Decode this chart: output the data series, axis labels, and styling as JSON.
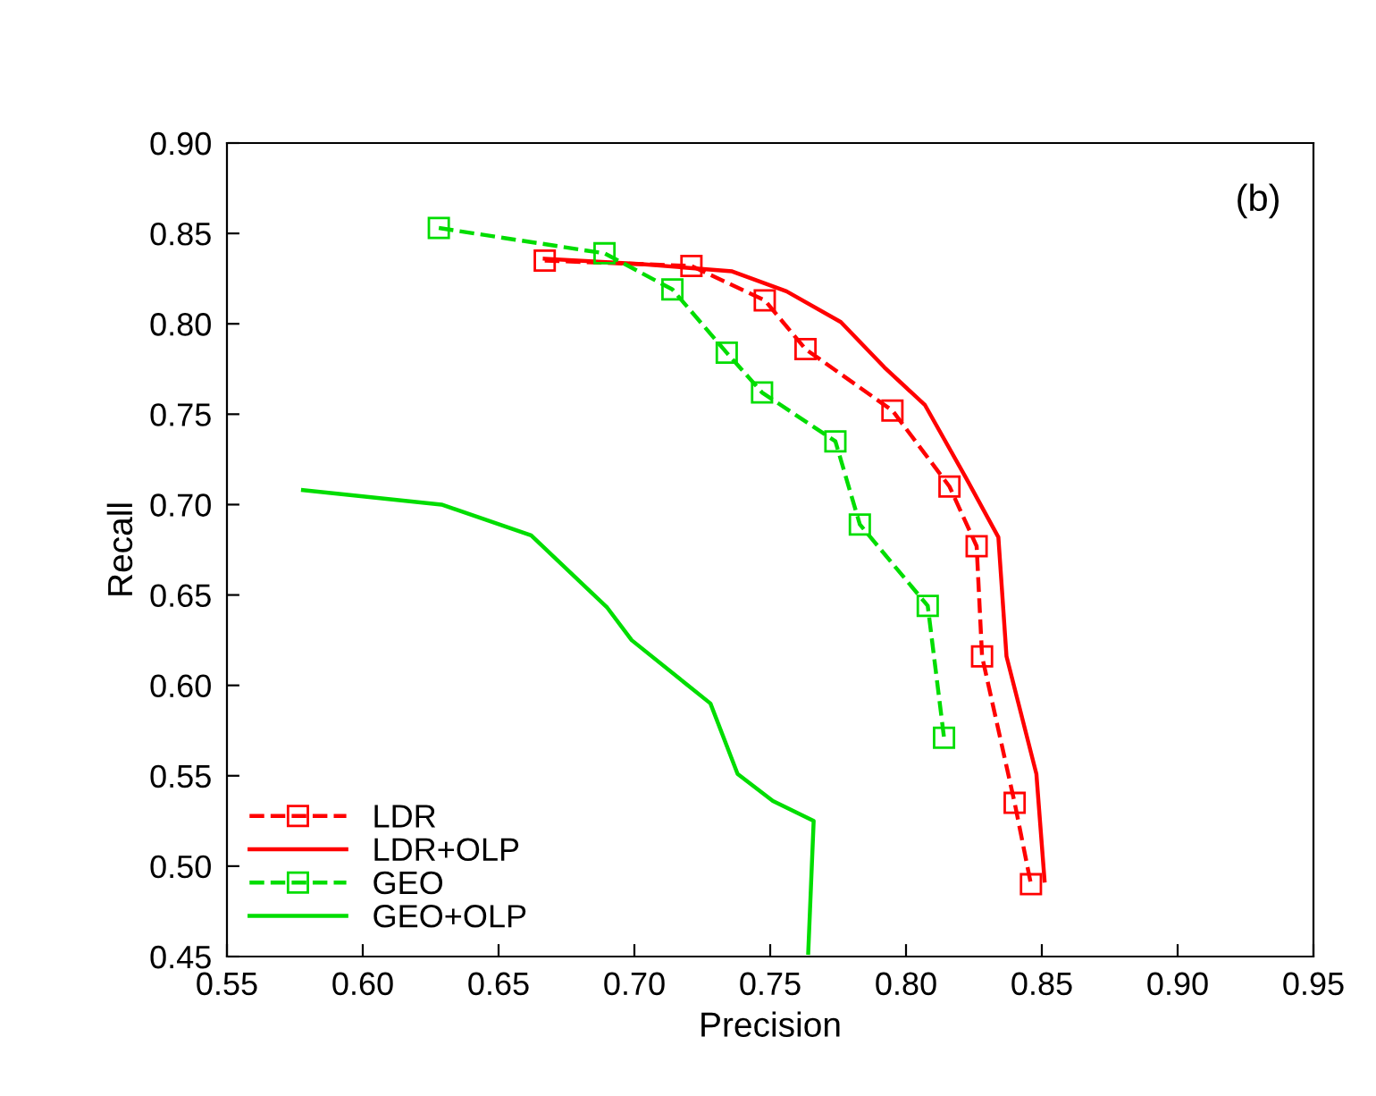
{
  "chart_data": {
    "type": "line",
    "xlabel": "Precision",
    "ylabel": "Recall",
    "annotations": [
      "(b)"
    ],
    "xlim": [
      0.55,
      0.95
    ],
    "xticks": [
      0.55,
      {
        "value": 0.6,
        "label": "0.60"
      },
      0.65,
      {
        "value": 0.7,
        "label": "0.70"
      },
      0.75,
      {
        "value": 0.8,
        "label": "0.80"
      },
      0.85,
      {
        "value": 0.9,
        "label": "0.90"
      },
      0.95
    ],
    "ylim": [
      0.45,
      0.9
    ],
    "yticks": [
      0.45,
      {
        "value": 0.5,
        "label": "0.50"
      },
      0.55,
      {
        "value": 0.6,
        "label": "0.60"
      },
      0.65,
      {
        "value": 0.7,
        "label": "0.70"
      },
      0.75,
      {
        "value": 0.8,
        "label": "0.80"
      },
      0.85,
      {
        "value": 0.9,
        "label": "0.90"
      }
    ],
    "grid": false,
    "legend": "bottom left",
    "series": [
      {
        "name": "LDR",
        "color": "#ff0000",
        "marker": "square",
        "line_style": "dashed",
        "x": [
          0.667,
          0.721,
          0.748,
          0.763,
          0.795,
          0.816,
          0.826,
          0.828,
          0.84,
          0.846
        ],
        "values": [
          0.835,
          0.832,
          0.813,
          0.786,
          0.752,
          0.71,
          0.677,
          0.616,
          0.535,
          0.49
        ]
      },
      {
        "name": "LDR+OLP",
        "color": "#ff0000",
        "marker": "none",
        "line_style": "solid",
        "x": [
          0.667,
          0.703,
          0.736,
          0.756,
          0.776,
          0.792,
          0.807,
          0.822,
          0.834,
          0.837,
          0.848,
          0.851
        ],
        "values": [
          0.836,
          0.833,
          0.829,
          0.818,
          0.801,
          0.776,
          0.755,
          0.715,
          0.682,
          0.616,
          0.551,
          0.492
        ]
      },
      {
        "name": "GEO",
        "color": "#00dd00",
        "marker": "square",
        "line_style": "dashed",
        "x": [
          0.628,
          0.689,
          0.714,
          0.734,
          0.747,
          0.774,
          0.783,
          0.808,
          0.814
        ],
        "values": [
          0.853,
          0.839,
          0.819,
          0.784,
          0.762,
          0.735,
          0.689,
          0.644,
          0.571
        ]
      },
      {
        "name": "GEO+OLP",
        "color": "#00dd00",
        "marker": "none",
        "line_style": "solid",
        "x": [
          0.578,
          0.629,
          0.662,
          0.69,
          0.699,
          0.728,
          0.738,
          0.751,
          0.766,
          0.764
        ],
        "values": [
          0.708,
          0.7,
          0.683,
          0.643,
          0.625,
          0.59,
          0.551,
          0.536,
          0.525,
          0.452
        ]
      }
    ]
  }
}
